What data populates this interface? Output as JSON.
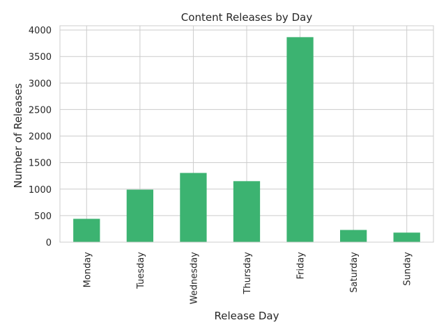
{
  "chart_data": {
    "type": "bar",
    "title": "Content Releases by Day",
    "xlabel": "Release Day",
    "ylabel": "Number of Releases",
    "categories": [
      "Monday",
      "Tuesday",
      "Wednesday",
      "Thursday",
      "Friday",
      "Saturday",
      "Sunday"
    ],
    "values": [
      440,
      990,
      1305,
      1150,
      3865,
      230,
      180
    ],
    "ylim": [
      0,
      4080
    ],
    "yticks": [
      0,
      500,
      1000,
      1500,
      2000,
      2500,
      3000,
      3500,
      4000
    ],
    "bar_color": "#3cb371",
    "grid": true,
    "legend": "none"
  }
}
